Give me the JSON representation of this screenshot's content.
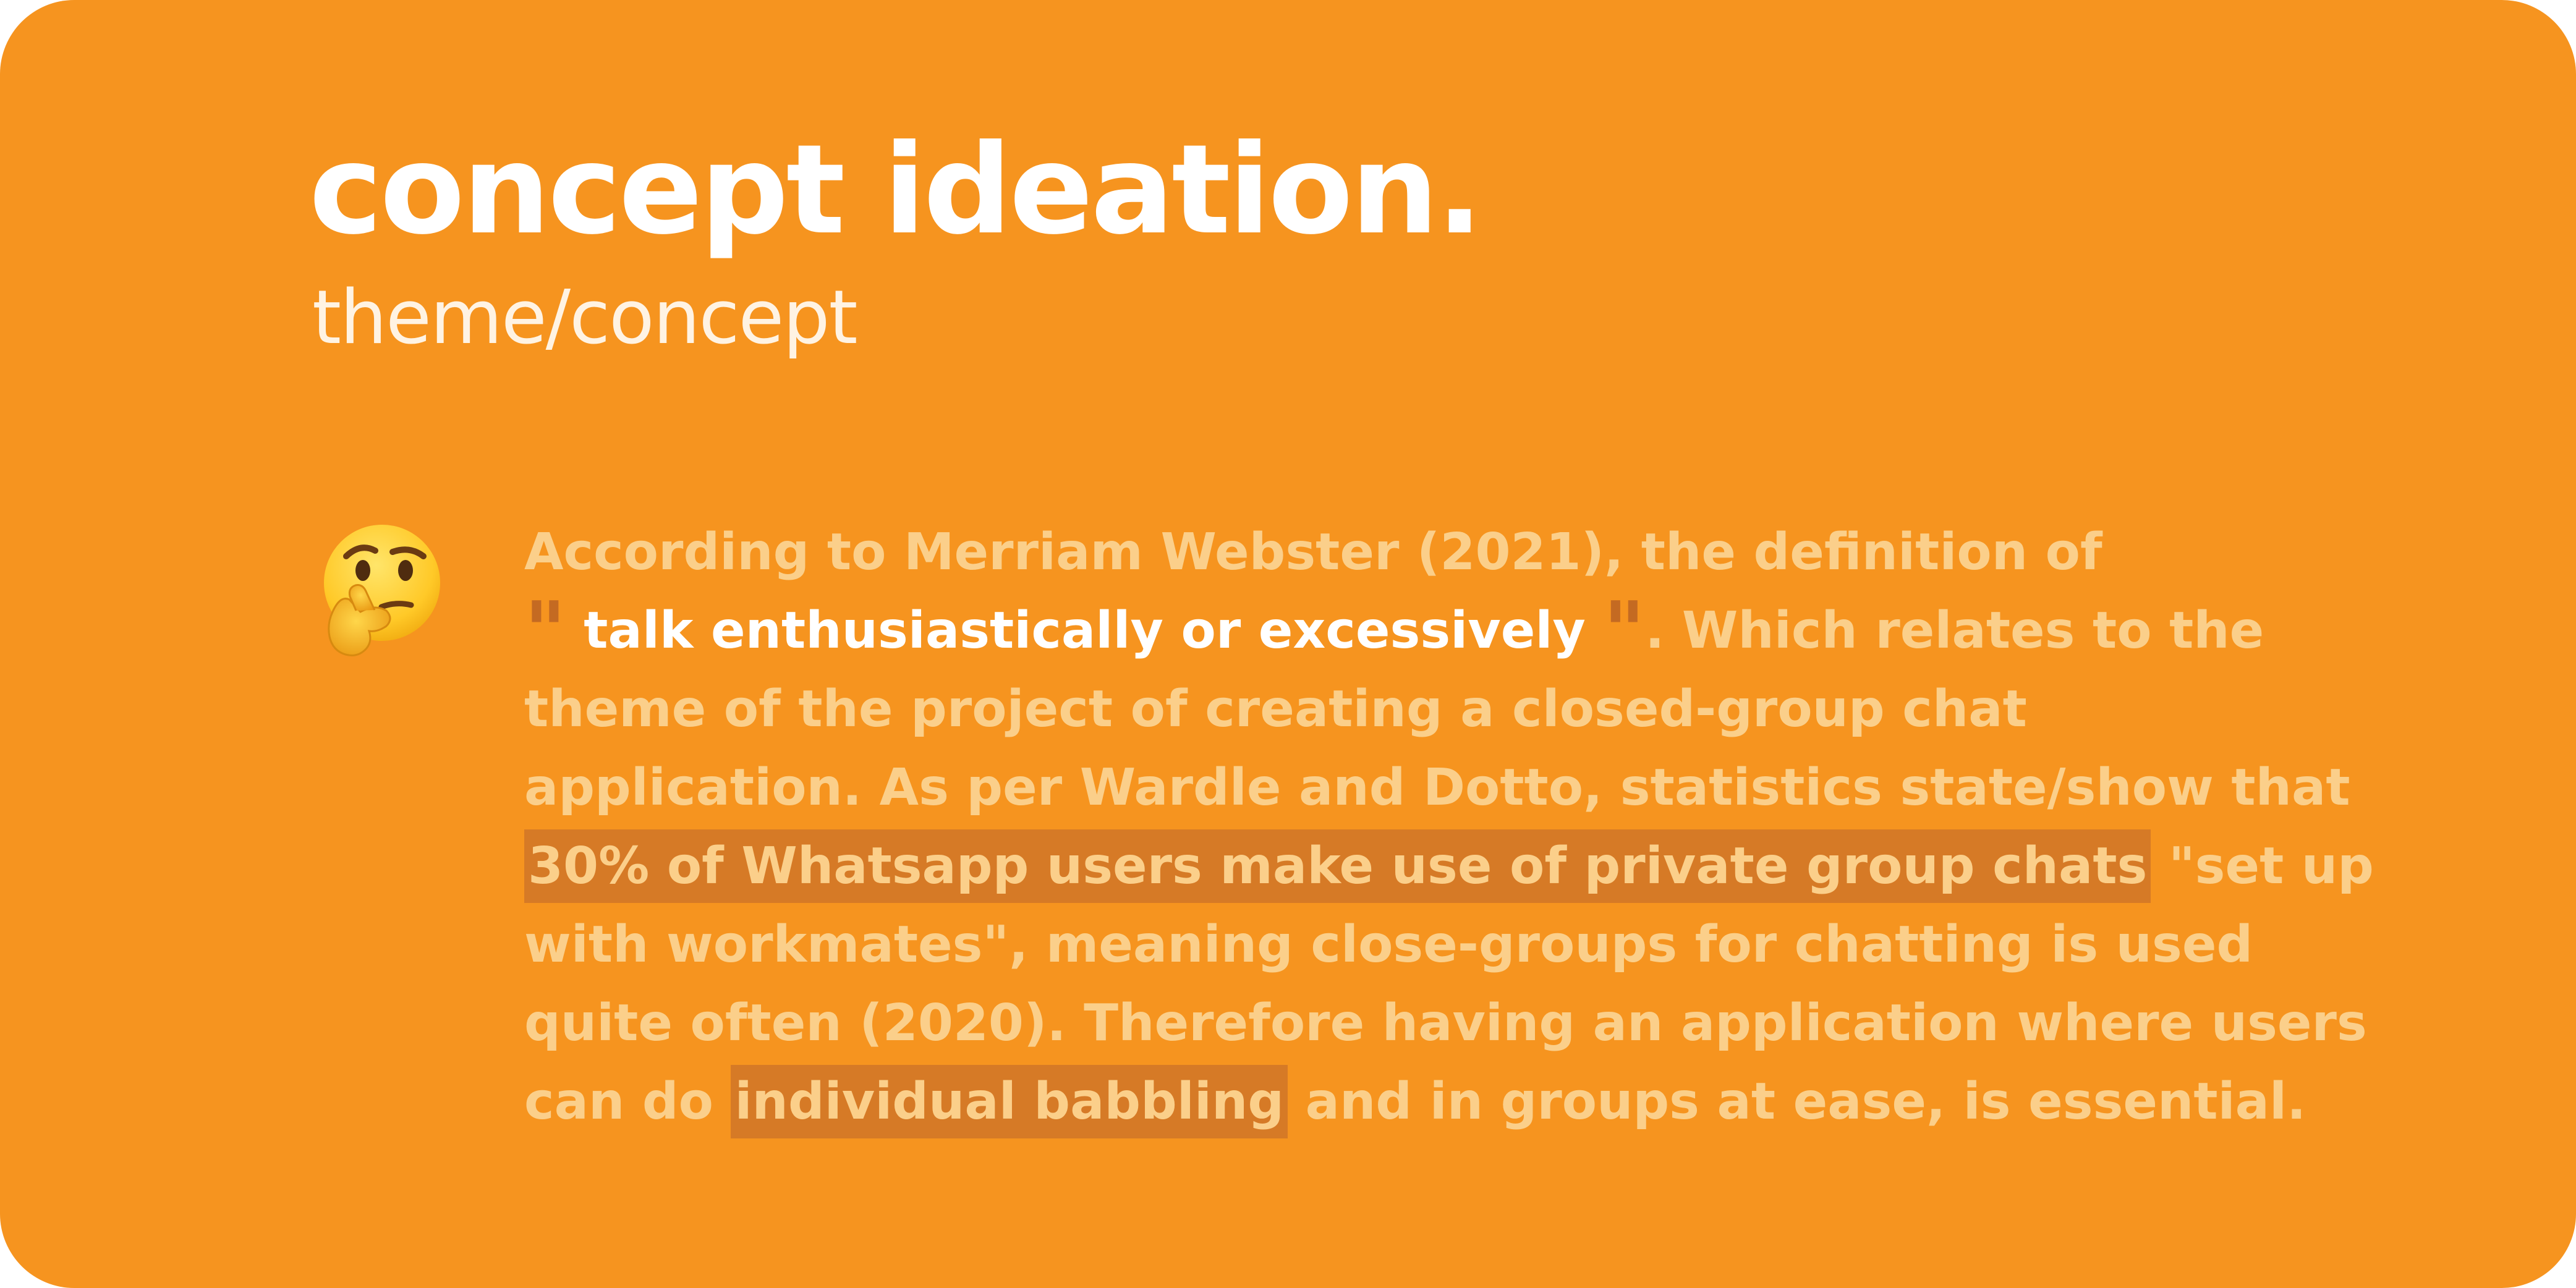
{
  "slide": {
    "title": "concept ideation.",
    "subtitle": "theme/concept",
    "emoji": "thinking-face-icon",
    "paragraph": {
      "line1": "According to Merriam Webster (2021), the definition of",
      "open_quote": "\"",
      "quote": "talk enthusiastically or excessively",
      "close_quote": "\"",
      "after_quote": ". Which relates to the",
      "line3": "theme of the project of creating a closed-group chat",
      "line4": "application. As per Wardle and Dotto, statistics state/show that",
      "highlight1": "30% of Whatsapp users make use of private group chats",
      "line5_rest": " \"set up",
      "line6": "with workmates\", meaning close-groups for chatting is used",
      "line7": "quite often (2020). Therefore having an application where users",
      "line8_start": "can do ",
      "highlight2": "individual babbling",
      "line8_rest": " and in groups at ease, is essential."
    },
    "colors": {
      "background": "#f6941f",
      "title": "#ffffff",
      "body_text": "#fbcf8a",
      "highlight": "#d67a26",
      "quote_mark": "#c46a22"
    }
  }
}
